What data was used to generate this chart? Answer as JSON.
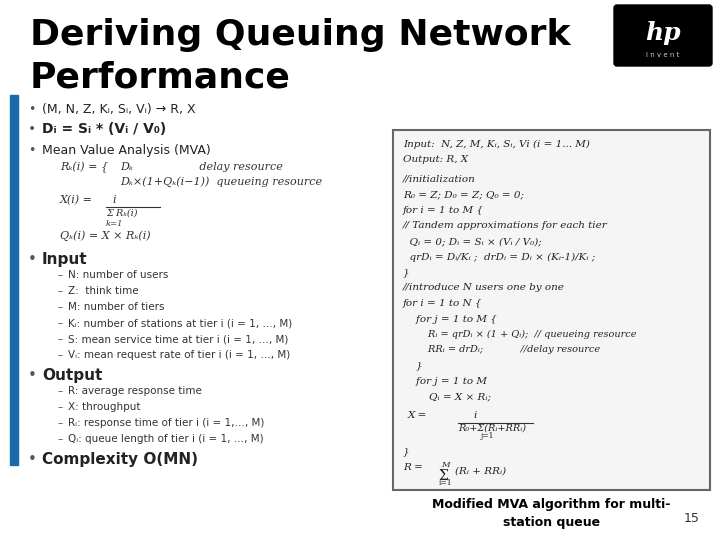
{
  "title_line1": "Deriving Queuing Network",
  "title_line2": "Performance",
  "bg_color": "#ffffff",
  "left_bar_color": "#1a6aab",
  "page_number": "15",
  "box_title": "Modified MVA algorithm for multi-\nstation queue"
}
